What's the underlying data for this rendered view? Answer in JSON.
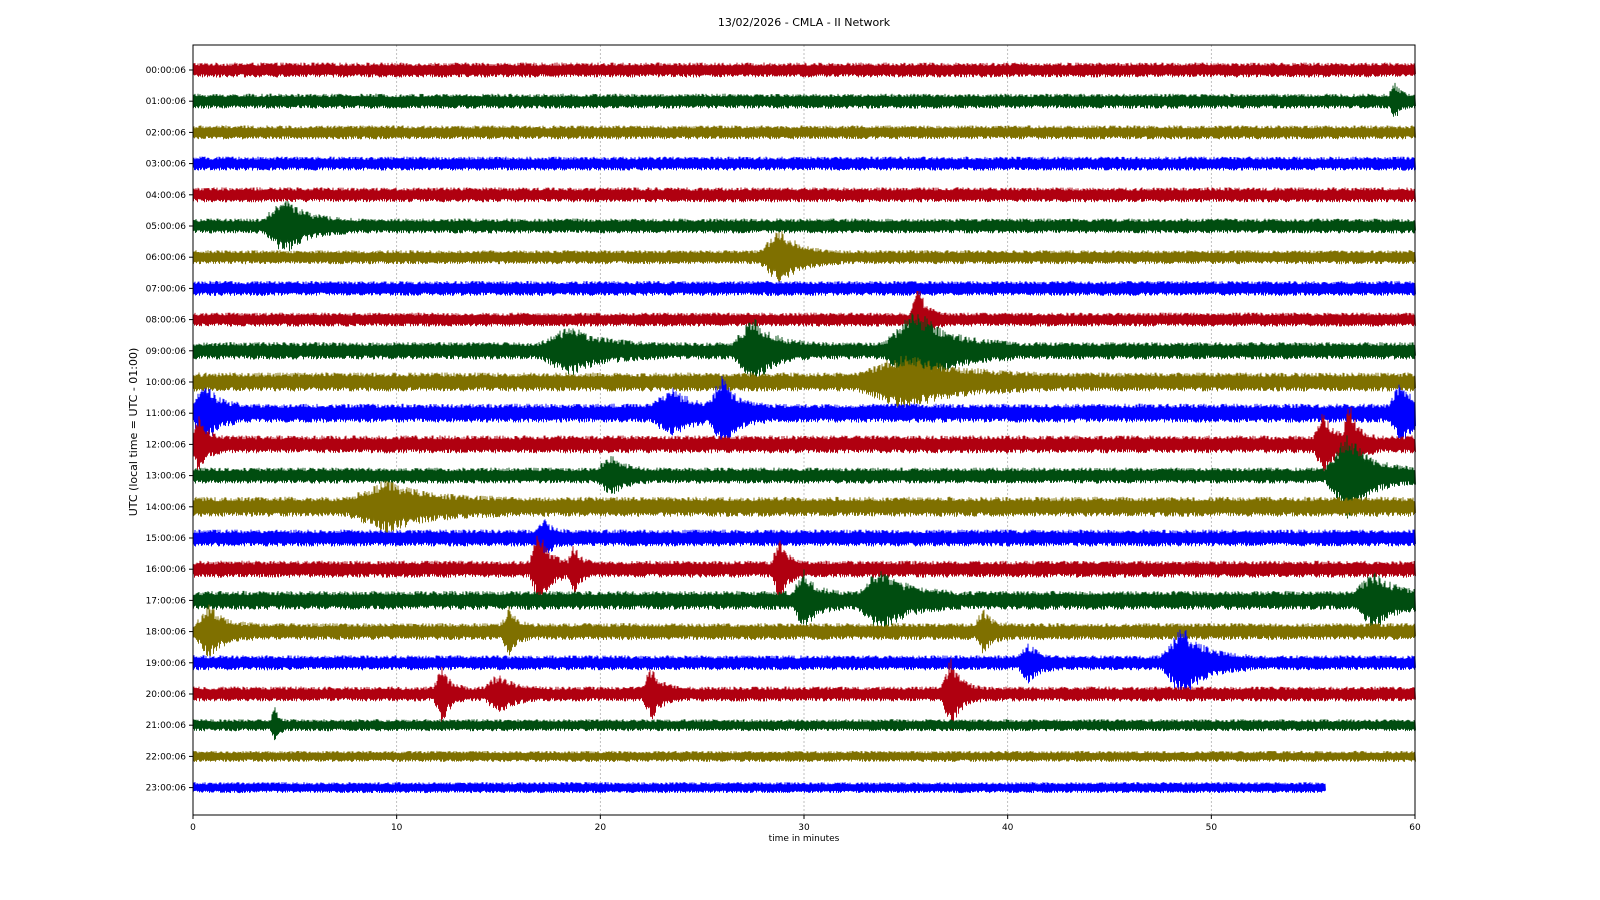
{
  "chart_data": {
    "type": "line",
    "title": "13/02/2026 - CMLA - II Network",
    "xlabel": "time in minutes",
    "ylabel": "UTC (local time = UTC - 01:00)",
    "xlim": [
      0,
      60
    ],
    "x_ticks": [
      0,
      10,
      20,
      30,
      40,
      50,
      60
    ],
    "grid": "vertical dotted at 10-minute ticks",
    "colors": [
      "#b00010",
      "#004d10",
      "#7f7000",
      "#0000ff"
    ],
    "series": [
      {
        "label": "00:00:06",
        "color": "#b00010",
        "amplitude": 0.3,
        "end_minute": 60,
        "events": []
      },
      {
        "label": "01:00:06",
        "color": "#004d10",
        "amplitude": 0.3,
        "end_minute": 60,
        "events": [
          {
            "t": 59.0,
            "amp": 0.5,
            "dur": 0.6
          }
        ]
      },
      {
        "label": "02:00:06",
        "color": "#7f7000",
        "amplitude": 0.28,
        "end_minute": 60,
        "events": []
      },
      {
        "label": "03:00:06",
        "color": "#0000ff",
        "amplitude": 0.28,
        "end_minute": 60,
        "events": []
      },
      {
        "label": "04:00:06",
        "color": "#b00010",
        "amplitude": 0.3,
        "end_minute": 60,
        "events": []
      },
      {
        "label": "05:00:06",
        "color": "#004d10",
        "amplitude": 0.3,
        "end_minute": 60,
        "events": [
          {
            "t": 4.5,
            "amp": 0.9,
            "dur": 2.2
          }
        ]
      },
      {
        "label": "06:00:06",
        "color": "#7f7000",
        "amplitude": 0.28,
        "end_minute": 60,
        "events": [
          {
            "t": 28.8,
            "amp": 0.9,
            "dur": 2.0
          }
        ]
      },
      {
        "label": "07:00:06",
        "color": "#0000ff",
        "amplitude": 0.3,
        "end_minute": 60,
        "events": []
      },
      {
        "label": "08:00:06",
        "color": "#b00010",
        "amplitude": 0.28,
        "end_minute": 60,
        "events": [
          {
            "t": 35.6,
            "amp": 1.2,
            "dur": 0.8
          }
        ]
      },
      {
        "label": "09:00:06",
        "color": "#004d10",
        "amplitude": 0.35,
        "end_minute": 60,
        "events": [
          {
            "t": 18.5,
            "amp": 0.7,
            "dur": 3.0
          },
          {
            "t": 27.5,
            "amp": 1.1,
            "dur": 2.0
          },
          {
            "t": 35.5,
            "amp": 1.4,
            "dur": 3.2
          }
        ]
      },
      {
        "label": "10:00:06",
        "color": "#7f7000",
        "amplitude": 0.38,
        "end_minute": 60,
        "events": [
          {
            "t": 35.0,
            "amp": 0.8,
            "dur": 5.0
          }
        ]
      },
      {
        "label": "11:00:06",
        "color": "#0000ff",
        "amplitude": 0.38,
        "end_minute": 60,
        "events": [
          {
            "t": 0.6,
            "amp": 0.9,
            "dur": 1.4
          },
          {
            "t": 23.5,
            "amp": 0.7,
            "dur": 2.0
          },
          {
            "t": 26.0,
            "amp": 1.2,
            "dur": 1.4
          },
          {
            "t": 59.3,
            "amp": 1.1,
            "dur": 1.2
          }
        ]
      },
      {
        "label": "12:00:06",
        "color": "#b00010",
        "amplitude": 0.36,
        "end_minute": 60,
        "events": [
          {
            "t": 0.3,
            "amp": 0.9,
            "dur": 0.8
          },
          {
            "t": 55.5,
            "amp": 1.0,
            "dur": 1.0
          },
          {
            "t": 56.8,
            "amp": 1.4,
            "dur": 0.8
          }
        ]
      },
      {
        "label": "13:00:06",
        "color": "#004d10",
        "amplitude": 0.32,
        "end_minute": 60,
        "events": [
          {
            "t": 20.5,
            "amp": 0.6,
            "dur": 1.4
          },
          {
            "t": 56.7,
            "amp": 1.5,
            "dur": 2.2
          }
        ]
      },
      {
        "label": "14:00:06",
        "color": "#7f7000",
        "amplitude": 0.4,
        "end_minute": 60,
        "events": [
          {
            "t": 9.5,
            "amp": 0.7,
            "dur": 4.0
          }
        ]
      },
      {
        "label": "15:00:06",
        "color": "#0000ff",
        "amplitude": 0.34,
        "end_minute": 60,
        "events": [
          {
            "t": 17.2,
            "amp": 0.6,
            "dur": 0.8
          }
        ]
      },
      {
        "label": "16:00:06",
        "color": "#b00010",
        "amplitude": 0.34,
        "end_minute": 60,
        "events": [
          {
            "t": 17.0,
            "amp": 1.3,
            "dur": 1.0
          },
          {
            "t": 18.7,
            "amp": 0.8,
            "dur": 0.6
          },
          {
            "t": 28.8,
            "amp": 1.1,
            "dur": 0.8
          }
        ]
      },
      {
        "label": "17:00:06",
        "color": "#004d10",
        "amplitude": 0.38,
        "end_minute": 60,
        "events": [
          {
            "t": 30.0,
            "amp": 0.9,
            "dur": 1.2
          },
          {
            "t": 33.8,
            "amp": 1.0,
            "dur": 2.4
          },
          {
            "t": 58.0,
            "amp": 0.9,
            "dur": 2.0
          }
        ]
      },
      {
        "label": "18:00:06",
        "color": "#7f7000",
        "amplitude": 0.34,
        "end_minute": 60,
        "events": [
          {
            "t": 0.8,
            "amp": 0.8,
            "dur": 1.4
          },
          {
            "t": 15.5,
            "amp": 0.7,
            "dur": 0.8
          },
          {
            "t": 38.8,
            "amp": 0.7,
            "dur": 0.8
          }
        ]
      },
      {
        "label": "19:00:06",
        "color": "#0000ff",
        "amplitude": 0.3,
        "end_minute": 60,
        "events": [
          {
            "t": 41.0,
            "amp": 0.6,
            "dur": 1.0
          },
          {
            "t": 48.6,
            "amp": 1.2,
            "dur": 2.2
          }
        ]
      },
      {
        "label": "20:00:06",
        "color": "#b00010",
        "amplitude": 0.3,
        "end_minute": 60,
        "events": [
          {
            "t": 12.2,
            "amp": 1.0,
            "dur": 0.8
          },
          {
            "t": 15.0,
            "amp": 0.6,
            "dur": 1.4
          },
          {
            "t": 22.5,
            "amp": 0.8,
            "dur": 1.0
          },
          {
            "t": 37.2,
            "amp": 1.2,
            "dur": 1.0
          }
        ]
      },
      {
        "label": "21:00:06",
        "color": "#004d10",
        "amplitude": 0.24,
        "end_minute": 60,
        "events": [
          {
            "t": 4.0,
            "amp": 0.6,
            "dur": 0.4
          }
        ]
      },
      {
        "label": "22:00:06",
        "color": "#7f7000",
        "amplitude": 0.22,
        "end_minute": 60,
        "events": []
      },
      {
        "label": "23:00:06",
        "color": "#0000ff",
        "amplitude": 0.22,
        "end_minute": 55.6,
        "events": []
      }
    ]
  }
}
